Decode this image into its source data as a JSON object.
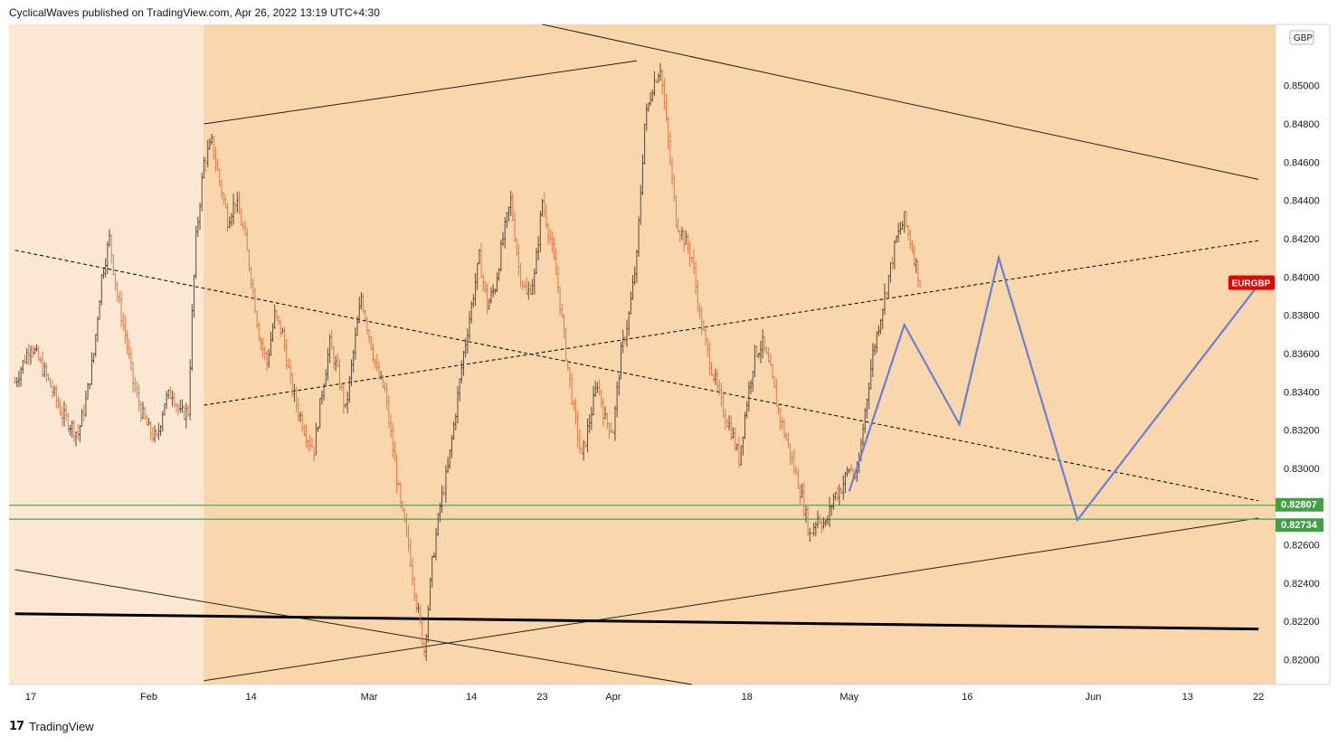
{
  "header": {
    "publish_line": "CyclicalWaves published on TradingView.com, Apr 26, 2022 13:19 UTC+4:30"
  },
  "footer": {
    "logo_glyph": "17",
    "brand": "TradingView"
  },
  "colors": {
    "bg_light": "#fbe7d2",
    "bg_zone": "#f9d6ab",
    "bull_wick": "#5a4a3a",
    "bear": "#e07a4a",
    "green_line": "#4caf50",
    "blue_projection": "#6a7fd6",
    "symbol_badge": "#e60000",
    "level_badge": "#43a047"
  },
  "chart_data": {
    "type": "candlestick",
    "symbol": "EURGBP",
    "currency": "GBP",
    "ylim": [
      0.8187,
      0.8532
    ],
    "y_ticks": [
      "0.85000",
      "0.84800",
      "0.84600",
      "0.84400",
      "0.84200",
      "0.84000",
      "0.83800",
      "0.83600",
      "0.83400",
      "0.83200",
      "0.83000",
      "0.82800",
      "0.82600",
      "0.82400",
      "0.82200",
      "0.82000"
    ],
    "x_ticks": [
      {
        "label": "17",
        "day": 0
      },
      {
        "label": "Feb",
        "day": 15
      },
      {
        "label": "14",
        "day": 28
      },
      {
        "label": "Mar",
        "day": 43
      },
      {
        "label": "14",
        "day": 56
      },
      {
        "label": "23",
        "day": 65
      },
      {
        "label": "Apr",
        "day": 74
      },
      {
        "label": "18",
        "day": 91
      },
      {
        "label": "May",
        "day": 104
      },
      {
        "label": "16",
        "day": 119
      },
      {
        "label": "Jun",
        "day": 135
      },
      {
        "label": "13",
        "day": 147
      },
      {
        "label": "22",
        "day": 156
      }
    ],
    "last_price_label": "EURGBP",
    "last_price": 0.8397,
    "levels": [
      {
        "label": "0.82807",
        "value": 0.82807
      },
      {
        "label": "0.82734",
        "value": 0.82734
      }
    ],
    "price_path": [
      [
        -2.0,
        0.8345
      ],
      [
        0.0,
        0.8365
      ],
      [
        2.0,
        0.8348
      ],
      [
        4.0,
        0.8328
      ],
      [
        6.0,
        0.8318
      ],
      [
        7.0,
        0.8335
      ],
      [
        8.0,
        0.836
      ],
      [
        9.0,
        0.84
      ],
      [
        10.0,
        0.842
      ],
      [
        11.0,
        0.839
      ],
      [
        12.0,
        0.837
      ],
      [
        13.0,
        0.8345
      ],
      [
        14.0,
        0.833
      ],
      [
        15.0,
        0.832
      ],
      [
        16.0,
        0.8315
      ],
      [
        17.0,
        0.8335
      ],
      [
        18.0,
        0.834
      ],
      [
        19.0,
        0.8328
      ],
      [
        20.0,
        0.833
      ],
      [
        20.5,
        0.838
      ],
      [
        21.0,
        0.842
      ],
      [
        22.0,
        0.846
      ],
      [
        23.0,
        0.847
      ],
      [
        24.0,
        0.845
      ],
      [
        25.0,
        0.843
      ],
      [
        26.0,
        0.844
      ],
      [
        27.0,
        0.8425
      ],
      [
        28.0,
        0.84
      ],
      [
        29.0,
        0.837
      ],
      [
        30.0,
        0.8355
      ],
      [
        31.0,
        0.838
      ],
      [
        32.0,
        0.837
      ],
      [
        33.0,
        0.8345
      ],
      [
        34.0,
        0.833
      ],
      [
        35.0,
        0.8318
      ],
      [
        36.0,
        0.831
      ],
      [
        37.0,
        0.834
      ],
      [
        38.0,
        0.8365
      ],
      [
        39.0,
        0.835
      ],
      [
        40.0,
        0.833
      ],
      [
        41.0,
        0.836
      ],
      [
        42.0,
        0.839
      ],
      [
        43.0,
        0.837
      ],
      [
        44.0,
        0.835
      ],
      [
        45.0,
        0.834
      ],
      [
        46.0,
        0.831
      ],
      [
        47.0,
        0.828
      ],
      [
        48.0,
        0.826
      ],
      [
        49.0,
        0.823
      ],
      [
        50.0,
        0.8205
      ],
      [
        51.0,
        0.825
      ],
      [
        52.0,
        0.828
      ],
      [
        53.0,
        0.83
      ],
      [
        54.0,
        0.833
      ],
      [
        55.0,
        0.836
      ],
      [
        56.0,
        0.8385
      ],
      [
        57.0,
        0.841
      ],
      [
        58.0,
        0.8385
      ],
      [
        59.0,
        0.8395
      ],
      [
        60.0,
        0.842
      ],
      [
        61.0,
        0.844
      ],
      [
        62.0,
        0.8405
      ],
      [
        63.0,
        0.839
      ],
      [
        64.0,
        0.84
      ],
      [
        65.0,
        0.844
      ],
      [
        66.0,
        0.842
      ],
      [
        67.0,
        0.8395
      ],
      [
        68.0,
        0.836
      ],
      [
        69.0,
        0.833
      ],
      [
        70.0,
        0.8305
      ],
      [
        71.0,
        0.8325
      ],
      [
        72.0,
        0.8345
      ],
      [
        73.0,
        0.8325
      ],
      [
        74.0,
        0.832
      ],
      [
        75.0,
        0.836
      ],
      [
        76.0,
        0.838
      ],
      [
        77.0,
        0.841
      ],
      [
        78.0,
        0.848
      ],
      [
        79.0,
        0.85
      ],
      [
        80.0,
        0.851
      ],
      [
        81.0,
        0.847
      ],
      [
        82.0,
        0.843
      ],
      [
        83.0,
        0.842
      ],
      [
        84.0,
        0.841
      ],
      [
        85.0,
        0.838
      ],
      [
        86.0,
        0.836
      ],
      [
        87.0,
        0.8345
      ],
      [
        88.0,
        0.833
      ],
      [
        89.0,
        0.832
      ],
      [
        90.0,
        0.8305
      ],
      [
        91.0,
        0.8335
      ],
      [
        92.0,
        0.836
      ],
      [
        93.0,
        0.8365
      ],
      [
        94.0,
        0.835
      ],
      [
        95.0,
        0.833
      ],
      [
        96.0,
        0.8315
      ],
      [
        97.0,
        0.83
      ],
      [
        98.0,
        0.8285
      ],
      [
        99.0,
        0.8265
      ],
      [
        100.0,
        0.8275
      ],
      [
        101.0,
        0.827
      ],
      [
        102.0,
        0.8285
      ],
      [
        103.0,
        0.829
      ],
      [
        104.0,
        0.83
      ],
      [
        105.0,
        0.8295
      ],
      [
        106.0,
        0.833
      ],
      [
        107.0,
        0.836
      ],
      [
        108.0,
        0.838
      ],
      [
        109.0,
        0.84
      ],
      [
        110.0,
        0.842
      ],
      [
        111.0,
        0.843
      ],
      [
        112.0,
        0.8415
      ],
      [
        113.0,
        0.8397
      ]
    ],
    "projection": [
      [
        104.0,
        0.8288
      ],
      [
        111.0,
        0.8375
      ],
      [
        118.0,
        0.8323
      ],
      [
        123.0,
        0.841
      ],
      [
        133.0,
        0.8273
      ],
      [
        156.0,
        0.8396
      ]
    ],
    "trendlines": [
      {
        "style": "solid",
        "points": [
          [
            22,
            0.848
          ],
          [
            77,
            0.8513
          ]
        ]
      },
      {
        "style": "solid",
        "points": [
          [
            65,
            0.8532
          ],
          [
            156,
            0.8451
          ]
        ]
      },
      {
        "style": "solid",
        "points": [
          [
            22,
            0.8189
          ],
          [
            156,
            0.8274
          ]
        ]
      },
      {
        "style": "solid",
        "points": [
          [
            -2,
            0.8247
          ],
          [
            84,
            0.8187
          ]
        ]
      },
      {
        "style": "dashed",
        "points": [
          [
            22,
            0.8333
          ],
          [
            156,
            0.8419
          ]
        ]
      },
      {
        "style": "dashed",
        "points": [
          [
            -2,
            0.8414
          ],
          [
            156,
            0.8283
          ]
        ]
      },
      {
        "style": "thick",
        "points": [
          [
            -2,
            0.8224
          ],
          [
            156,
            0.8216
          ]
        ]
      }
    ]
  }
}
